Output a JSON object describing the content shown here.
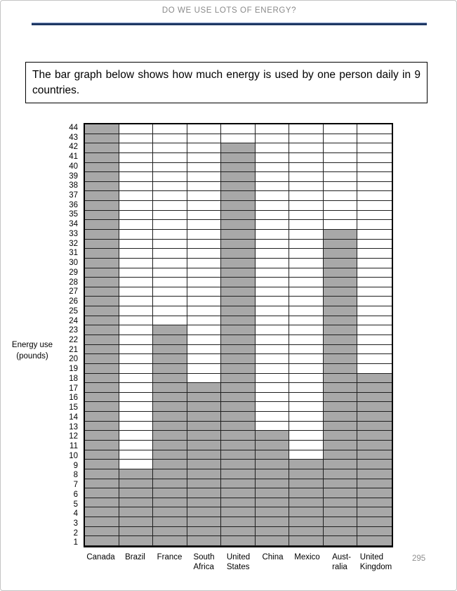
{
  "page": {
    "header": {
      "title": "DO WE USE LOTS OF ENERGY?"
    },
    "instruction_text": "The bar graph below shows how much energy is used by one person daily in 9 countries.",
    "page_number": "295"
  },
  "chart_data": {
    "type": "bar",
    "title": "",
    "categories": [
      "Canada",
      "Brazil",
      "France",
      "South Africa",
      "United States",
      "China",
      "Mexico",
      "Australia",
      "United Kingdom"
    ],
    "category_label_lines": [
      [
        "Canada"
      ],
      [
        "Brazil"
      ],
      [
        "France"
      ],
      [
        "South",
        "Africa"
      ],
      [
        "United",
        "States"
      ],
      [
        "China"
      ],
      [
        "Mexico"
      ],
      [
        "Aust-",
        "ralia"
      ],
      [
        "United",
        "Kingdom"
      ]
    ],
    "values": [
      44,
      8,
      23,
      17,
      42,
      12,
      9,
      33,
      18
    ],
    "unit": "pounds",
    "xlabel": "",
    "ylabel": "Energy use (pounds)",
    "ylabel_lines": [
      "Energy use",
      "(pounds)"
    ],
    "ylim": [
      0,
      44
    ],
    "ytick_step": 1,
    "yticks_descending_from": 44,
    "grid": true,
    "legend": "none",
    "bar_color": "#a8a8a8",
    "gridline_color": "#1f1f1f",
    "note": "each bar fills its full column; gray cells from value down to 1"
  },
  "colors": {
    "header_text": "#8a8a8a",
    "header_rule": "#1f3864",
    "instruction_border": "#000000",
    "page_number": "#909090",
    "bar_fill": "#a8a8a8",
    "page_border": "#c4c4c4"
  }
}
